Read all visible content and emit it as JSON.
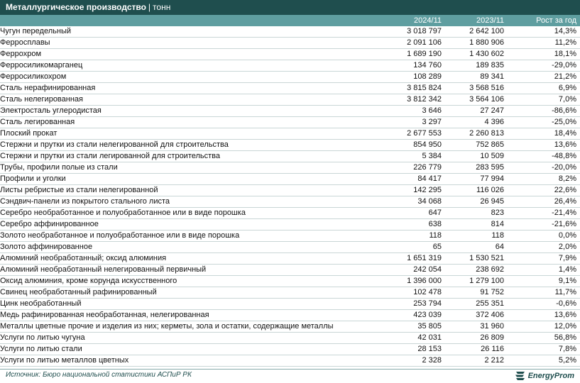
{
  "header": {
    "title": "Металлургическое производство",
    "separator": "|",
    "unit": "тонн"
  },
  "columns": {
    "col1": "2024/11",
    "col2": "2023/11",
    "col3": "Рост за год"
  },
  "rows": [
    {
      "name": "Чугун передельный",
      "level": 0,
      "v2024": "3 018 797",
      "v2023": "2 642 100",
      "growth": "14,3%"
    },
    {
      "name": "Ферросплавы",
      "level": 0,
      "v2024": "2 091 106",
      "v2023": "1 880 906",
      "growth": "11,2%"
    },
    {
      "name": "Феррохром",
      "level": 1,
      "v2024": "1 689 190",
      "v2023": "1 430 602",
      "growth": "18,1%"
    },
    {
      "name": "Ферросиликомарганец",
      "level": 1,
      "v2024": "134 760",
      "v2023": "189 835",
      "growth": "-29,0%"
    },
    {
      "name": "Ферросиликохром",
      "level": 1,
      "v2024": "108 289",
      "v2023": "89 341",
      "growth": "21,2%"
    },
    {
      "name": "Сталь нерафинированная",
      "level": 0,
      "v2024": "3 815 824",
      "v2023": "3 568 516",
      "growth": "6,9%"
    },
    {
      "name": "Сталь нелегированная",
      "level": 1,
      "v2024": "3 812 342",
      "v2023": "3 564 106",
      "growth": "7,0%"
    },
    {
      "name": "Электросталь углеродистая",
      "level": 2,
      "v2024": "3 646",
      "v2023": "27 247",
      "growth": "-86,6%"
    },
    {
      "name": "Сталь легированная",
      "level": 1,
      "v2024": "3 297",
      "v2023": "4 396",
      "growth": "-25,0%"
    },
    {
      "name": "Плоский прокат",
      "level": 0,
      "v2024": "2 677 553",
      "v2023": "2 260 813",
      "growth": "18,4%"
    },
    {
      "name": "Стержни и прутки из стали нелегированной для строительства",
      "level": 0,
      "v2024": "854 950",
      "v2023": "752 865",
      "growth": "13,6%"
    },
    {
      "name": "Стержни и прутки из стали легированной для строительства",
      "level": 0,
      "v2024": "5 384",
      "v2023": "10 509",
      "growth": "-48,8%"
    },
    {
      "name": "Трубы, профили полые из стали",
      "level": 0,
      "v2024": "226 779",
      "v2023": "283 595",
      "growth": "-20,0%"
    },
    {
      "name": "Профили и уголки",
      "level": 0,
      "v2024": "84 417",
      "v2023": "77 994",
      "growth": "8,2%"
    },
    {
      "name": "Листы ребристые из стали нелегированной",
      "level": 0,
      "v2024": "142 295",
      "v2023": "116 026",
      "growth": "22,6%"
    },
    {
      "name": "Сэндвич-панели из покрытого стального листа",
      "level": 0,
      "v2024": "34 068",
      "v2023": "26 945",
      "growth": "26,4%"
    },
    {
      "name": "Серебро необработанное и полуобработанное или в виде порошка",
      "level": 0,
      "v2024": "647",
      "v2023": "823",
      "growth": "-21,4%"
    },
    {
      "name": "Серебро аффинированное",
      "level": 1,
      "v2024": "638",
      "v2023": "814",
      "growth": "-21,6%"
    },
    {
      "name": "Золото необработанное и полуобработанное или в виде порошка",
      "level": 0,
      "v2024": "118",
      "v2023": "118",
      "growth": "0,0%"
    },
    {
      "name": "Золото аффинированное",
      "level": 1,
      "v2024": "65",
      "v2023": "64",
      "growth": "2,0%"
    },
    {
      "name": "Алюминий необработанный; оксид алюминия",
      "level": 0,
      "v2024": "1 651 319",
      "v2023": "1 530 521",
      "growth": "7,9%"
    },
    {
      "name": "Алюминий необработанный нелегированный первичный",
      "level": 1,
      "v2024": "242 054",
      "v2023": "238 692",
      "growth": "1,4%"
    },
    {
      "name": "Оксид алюминия, кроме корунда искусственного",
      "level": 1,
      "v2024": "1 396 000",
      "v2023": "1 279 100",
      "growth": "9,1%"
    },
    {
      "name": "Свинец необработанный рафинированный",
      "level": 0,
      "v2024": "102 478",
      "v2023": "91 752",
      "growth": "11,7%"
    },
    {
      "name": "Цинк необработанный",
      "level": 0,
      "v2024": "253 794",
      "v2023": "255 351",
      "growth": "-0,6%"
    },
    {
      "name": "Медь рафинированная необработанная, нелегированная",
      "level": 0,
      "v2024": "423 039",
      "v2023": "372 406",
      "growth": "13,6%"
    },
    {
      "name": "Металлы цветные прочие и изделия из них; керметы, зола и остатки, содержащие металлы",
      "level": 0,
      "v2024": "35 805",
      "v2023": "31 960",
      "growth": "12,0%"
    },
    {
      "name": "Услуги по литью чугуна",
      "level": 0,
      "v2024": "42 031",
      "v2023": "26 809",
      "growth": "56,8%"
    },
    {
      "name": "Услуги по литью стали",
      "level": 0,
      "v2024": "28 153",
      "v2023": "26 116",
      "growth": "7,8%"
    },
    {
      "name": "Услуги по литью металлов цветных",
      "level": 0,
      "v2024": "2 328",
      "v2023": "2 212",
      "growth": "5,2%"
    }
  ],
  "footer": {
    "source": "Источник: Бюро национальной статистики АСПиР РК",
    "logo_text": "EnergyProm",
    "logo_icon": "energyprom-logo-icon"
  },
  "colors": {
    "title_bg": "#1f4e4e",
    "header_bg": "#5f9ea0",
    "row_border": "#c9d6d6",
    "text": "#111111"
  }
}
